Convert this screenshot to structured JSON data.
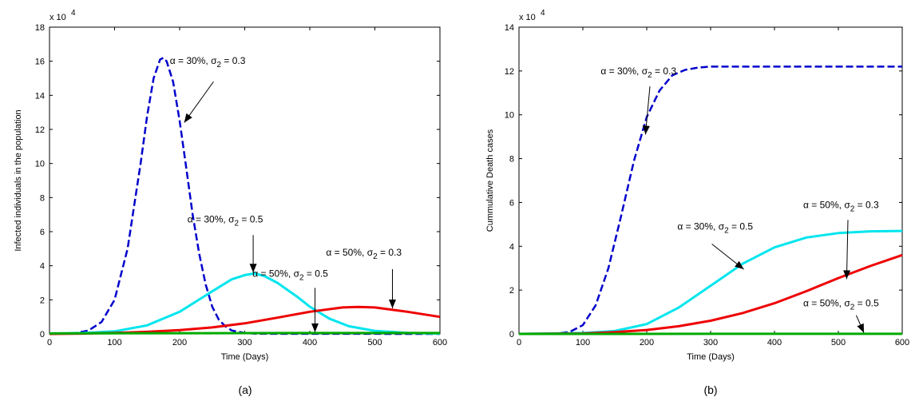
{
  "chart_data": [
    {
      "type": "line",
      "caption": "(a)",
      "xlabel": "Time (Days)",
      "ylabel": "Infected individuals in the population",
      "y_multiplier": "x 10",
      "y_multiplier_exp": "4",
      "xlim": [
        0,
        600
      ],
      "ylim": [
        0,
        18
      ],
      "xticks": [
        0,
        100,
        200,
        300,
        400,
        500,
        600
      ],
      "yticks": [
        0,
        2,
        4,
        6,
        8,
        10,
        12,
        14,
        16,
        18
      ],
      "grid": false,
      "series": [
        {
          "color": "#0000cc",
          "dash": true,
          "x": [
            0,
            40,
            60,
            80,
            100,
            120,
            140,
            150,
            160,
            170,
            175,
            180,
            190,
            200,
            210,
            220,
            230,
            240,
            250,
            260,
            270,
            280,
            300,
            320,
            600
          ],
          "y": [
            0,
            0.05,
            0.2,
            0.7,
            2.0,
            5.0,
            10.0,
            12.8,
            15.0,
            16.1,
            16.2,
            16.0,
            14.8,
            12.5,
            9.8,
            7.0,
            4.7,
            2.9,
            1.6,
            0.85,
            0.45,
            0.2,
            0.05,
            0.01,
            0
          ]
        },
        {
          "color": "#00e5ee",
          "dash": false,
          "x": [
            0,
            50,
            100,
            150,
            200,
            250,
            280,
            300,
            315,
            330,
            350,
            380,
            400,
            430,
            460,
            500,
            550,
            600
          ],
          "y": [
            0.02,
            0.05,
            0.15,
            0.5,
            1.3,
            2.5,
            3.2,
            3.45,
            3.55,
            3.4,
            3.0,
            2.2,
            1.6,
            0.9,
            0.45,
            0.18,
            0.06,
            0.02
          ]
        },
        {
          "color": "#ee0000",
          "dash": false,
          "x": [
            0,
            50,
            100,
            150,
            200,
            250,
            300,
            350,
            400,
            450,
            475,
            500,
            550,
            600
          ],
          "y": [
            0.0,
            0.02,
            0.06,
            0.12,
            0.22,
            0.38,
            0.62,
            0.95,
            1.3,
            1.55,
            1.58,
            1.55,
            1.3,
            1.0
          ]
        },
        {
          "color": "#00aa00",
          "dash": false,
          "x": [
            0,
            200,
            400,
            600
          ],
          "y": [
            0.03,
            0.04,
            0.05,
            0.05
          ]
        }
      ],
      "annotations": [
        {
          "alpha": "α = 30%, ",
          "sigma": "σ",
          "sub": "2",
          "value": " = 0.3",
          "x": 185,
          "y": 15.85,
          "ax": 252,
          "ay": 14.8,
          "bx": 207,
          "by": 12.4
        },
        {
          "alpha": "α = 30%, ",
          "sigma": "σ",
          "sub": "2",
          "value": " = 0.5",
          "x": 212,
          "y": 6.55,
          "ax": 313,
          "ay": 5.8,
          "bx": 313,
          "by": 3.6
        },
        {
          "alpha": "α = 50%, ",
          "sigma": "σ",
          "sub": "2",
          "value": " = 0.5",
          "x": 312,
          "y": 3.35,
          "ax": 408,
          "ay": 2.7,
          "bx": 408,
          "by": 0.1
        },
        {
          "alpha": "α = 50%, ",
          "sigma": "σ",
          "sub": "2",
          "value": " = 0.3",
          "x": 425,
          "y": 4.6,
          "ax": 527,
          "ay": 3.8,
          "bx": 527,
          "by": 1.5
        }
      ]
    },
    {
      "type": "line",
      "caption": "(b)",
      "xlabel": "Time (Days)",
      "ylabel": "Cummulative Death cases",
      "y_multiplier": "x 10",
      "y_multiplier_exp": "4",
      "xlim": [
        0,
        600
      ],
      "ylim": [
        0,
        14
      ],
      "xticks": [
        0,
        100,
        200,
        300,
        400,
        500,
        600
      ],
      "yticks": [
        0,
        2,
        4,
        6,
        8,
        10,
        12,
        14
      ],
      "grid": false,
      "series": [
        {
          "color": "#0000cc",
          "dash": true,
          "x": [
            0,
            60,
            80,
            100,
            120,
            140,
            160,
            180,
            200,
            220,
            240,
            260,
            280,
            300,
            350,
            600
          ],
          "y": [
            0,
            0.02,
            0.1,
            0.4,
            1.3,
            3.0,
            5.4,
            7.9,
            9.9,
            11.1,
            11.8,
            12.05,
            12.15,
            12.2,
            12.2,
            12.2
          ]
        },
        {
          "color": "#00e5ee",
          "dash": false,
          "x": [
            0,
            100,
            150,
            200,
            250,
            300,
            350,
            400,
            450,
            500,
            550,
            600
          ],
          "y": [
            0.0,
            0.04,
            0.13,
            0.45,
            1.2,
            2.2,
            3.2,
            3.95,
            4.4,
            4.6,
            4.68,
            4.7
          ]
        },
        {
          "color": "#ee0000",
          "dash": false,
          "x": [
            0,
            100,
            150,
            200,
            250,
            300,
            350,
            400,
            450,
            500,
            550,
            600
          ],
          "y": [
            0.0,
            0.02,
            0.08,
            0.18,
            0.35,
            0.6,
            0.95,
            1.4,
            1.95,
            2.55,
            3.1,
            3.6
          ]
        },
        {
          "color": "#00aa00",
          "dash": false,
          "x": [
            0,
            300,
            600
          ],
          "y": [
            0.0,
            0.002,
            0.005
          ]
        }
      ],
      "annotations": [
        {
          "alpha": "α = 30%, ",
          "sigma": "σ",
          "sub": "2",
          "value": " = 0.3",
          "x": 128,
          "y": 11.85,
          "ax": 205,
          "ay": 11.3,
          "bx": 198,
          "by": 9.1
        },
        {
          "alpha": "α = 30%, ",
          "sigma": "σ",
          "sub": "2",
          "value": " = 0.5",
          "x": 248,
          "y": 4.75,
          "ax": 302,
          "ay": 4.1,
          "bx": 352,
          "by": 2.95
        },
        {
          "alpha": "α = 50%, ",
          "sigma": "σ",
          "sub": "2",
          "value": " = 0.3",
          "x": 445,
          "y": 5.75,
          "ax": 515,
          "ay": 5.2,
          "bx": 513,
          "by": 2.5
        },
        {
          "alpha": "α = 50%, ",
          "sigma": "σ",
          "sub": "2",
          "value": " = 0.5",
          "x": 445,
          "y": 1.25,
          "ax": 528,
          "ay": 0.85,
          "bx": 540,
          "by": 0.05
        }
      ]
    }
  ]
}
